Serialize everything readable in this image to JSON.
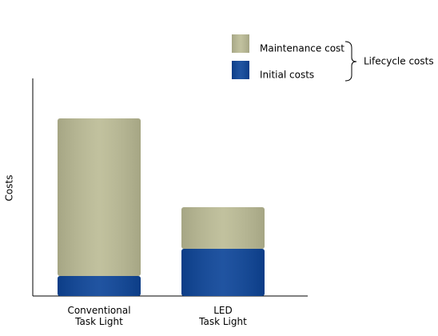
{
  "chart_data": {
    "type": "stacked-bar",
    "y_label": "Costs",
    "categories": [
      "Conventional\nTask Light",
      "LED\nTask Light"
    ],
    "series": [
      {
        "name": "Initial costs",
        "color": "#0d4599",
        "values": [
          25,
          59
        ]
      },
      {
        "name": "Maintenance cost",
        "color": "#bcbc96",
        "values": [
          197,
          52
        ]
      }
    ],
    "group_label": "Lifecycle costs",
    "ylim": [
      0,
      272
    ]
  }
}
